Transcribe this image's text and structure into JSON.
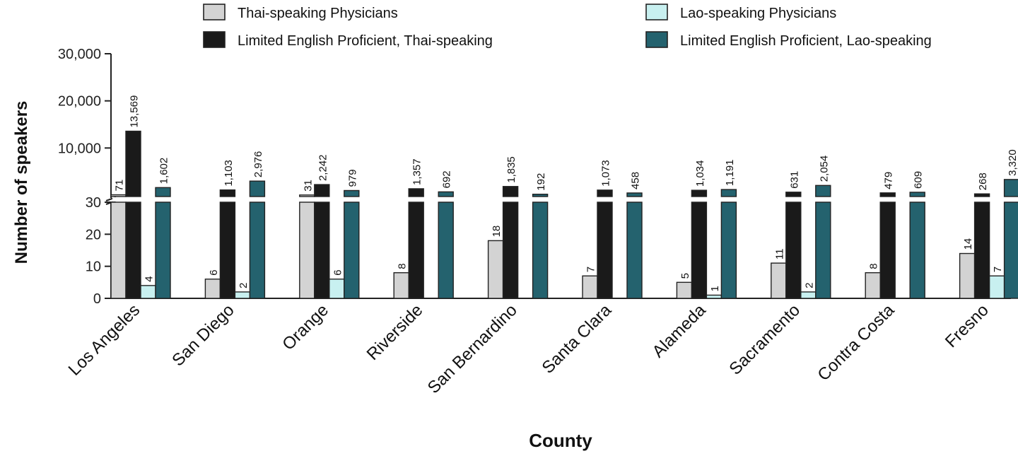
{
  "chart_data": {
    "type": "bar",
    "ylabel": "Number of speakers",
    "xlabel": "County",
    "categories": [
      "Los Angeles",
      "San Diego",
      "Orange",
      "Riverside",
      "San Bernardino",
      "Santa Clara",
      "Alameda",
      "Sacramento",
      "Contra Costa",
      "Fresno"
    ],
    "series": [
      {
        "name": "Thai-speaking Physicians",
        "color": "#d3d3d3",
        "values": [
          71,
          6,
          31,
          8,
          18,
          7,
          5,
          11,
          8,
          14
        ],
        "labels": [
          "71",
          "6",
          "31",
          "8",
          "18",
          "7",
          "5",
          "11",
          "8",
          "14"
        ]
      },
      {
        "name": "Limited English Proficient, Thai-speaking",
        "color": "#1a1a1a",
        "values": [
          13569,
          1103,
          2242,
          1357,
          1835,
          1073,
          1034,
          631,
          479,
          268
        ],
        "labels": [
          "13,569",
          "1,103",
          "2,242",
          "1,357",
          "1,835",
          "1,073",
          "1,034",
          "631",
          "479",
          "268"
        ]
      },
      {
        "name": "Lao-speaking Physicians",
        "color": "#c8f0f0",
        "values": [
          4,
          2,
          6,
          0,
          0,
          0,
          1,
          2,
          0,
          7
        ],
        "labels": [
          "4",
          "2",
          "6",
          "",
          "",
          "",
          "1",
          "2",
          "",
          "7"
        ]
      },
      {
        "name": "Limited English Proficient, Lao-speaking",
        "color": "#24626e",
        "values": [
          1602,
          2976,
          979,
          692,
          192,
          458,
          1191,
          2054,
          609,
          3320
        ],
        "labels": [
          "1,602",
          "2,976",
          "979",
          "692",
          "192",
          "458",
          "1,191",
          "2,054",
          "609",
          "3,320"
        ]
      }
    ],
    "y_axis": {
      "broken": true,
      "lower": {
        "range": [
          0,
          30
        ],
        "ticks": [
          0,
          10,
          20,
          30
        ],
        "tick_labels": [
          "0",
          "10",
          "20",
          "30"
        ]
      },
      "upper": {
        "range": [
          0,
          30000
        ],
        "ticks": [
          10000,
          20000,
          30000
        ],
        "tick_labels": [
          "10,000",
          "20,000",
          "30,000"
        ]
      }
    },
    "legend": "top",
    "grid": false
  }
}
